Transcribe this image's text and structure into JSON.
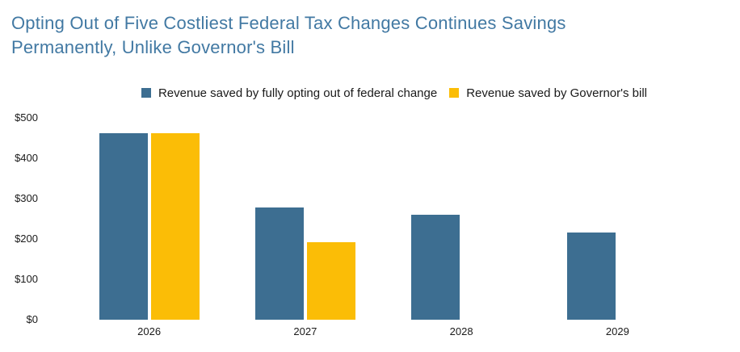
{
  "title_lines": [
    "Opting Out of Five Costliest Federal Tax Changes Continues Savings",
    "Permanently, Unlike Governor's Bill"
  ],
  "chart_data": {
    "type": "bar",
    "title": "Opting Out of Five Costliest Federal Tax Changes Continues Savings Permanently, Unlike Governor's Bill",
    "categories": [
      "2026",
      "2027",
      "2028",
      "2029"
    ],
    "series": [
      {
        "name": "Revenue saved by fully opting out of federal change",
        "color": "#3d6e91",
        "values": [
          463,
          278,
          260,
          216
        ]
      },
      {
        "name": "Revenue saved by Governor's bill",
        "color": "#fbbd06",
        "values": [
          463,
          193,
          0,
          0
        ]
      }
    ],
    "xlabel": "",
    "ylabel": "",
    "ylim": [
      0,
      500
    ],
    "ytick_step": 100,
    "yticks": [
      "$0",
      "$100",
      "$200",
      "$300",
      "$400",
      "$500"
    ],
    "grid": false,
    "legend_position": "top-center"
  },
  "colors": {
    "title": "#4279a3",
    "series_blue": "#3d6e91",
    "series_yellow": "#fbbd06",
    "axis_text": "#1a1a1a",
    "background": "#ffffff"
  }
}
